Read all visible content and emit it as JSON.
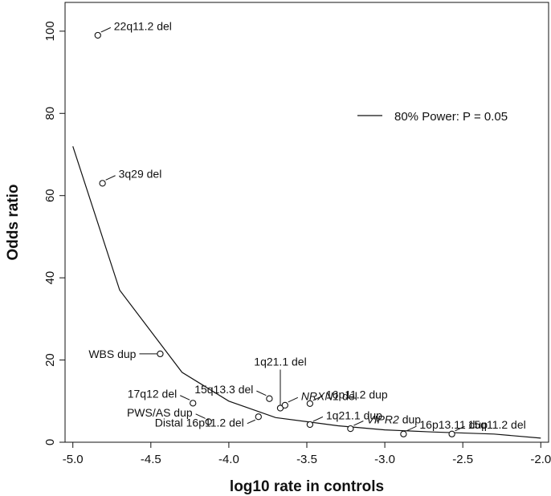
{
  "chart_data": {
    "type": "scatter",
    "xlabel": "log10 rate in controls",
    "ylabel": "Odds ratio",
    "xlim": [
      -5.05,
      -1.95
    ],
    "ylim": [
      0,
      107
    ],
    "xticks": [
      "-5.0",
      "-4.5",
      "-4.0",
      "-3.5",
      "-3.0",
      "-2.5",
      "-2.0"
    ],
    "xtick_values": [
      -5.0,
      -4.5,
      -4.0,
      -3.5,
      -3.0,
      -2.5,
      -2.0
    ],
    "yticks": [
      "0",
      "20",
      "40",
      "60",
      "80",
      "100"
    ],
    "ytick_values": [
      0,
      20,
      40,
      60,
      80,
      100
    ],
    "grid": false,
    "legend": {
      "position": "top-right",
      "entries": [
        {
          "label": "80% Power: P = 0.05",
          "style": "line"
        }
      ]
    },
    "power_curve": {
      "name": "80% Power: P = 0.05",
      "x": [
        -5.0,
        -4.7,
        -4.3,
        -4.0,
        -3.7,
        -3.3,
        -3.0,
        -2.7,
        -2.3,
        -2.0
      ],
      "y": [
        72,
        37,
        17,
        10,
        6,
        4,
        3,
        2.5,
        2,
        1
      ]
    },
    "points": [
      {
        "label": "22q11.2 del",
        "italic": "",
        "suffix": "",
        "x": -4.84,
        "y": 99,
        "dir": "up-right"
      },
      {
        "label": "3q29 del",
        "italic": "",
        "suffix": "",
        "x": -4.81,
        "y": 63,
        "dir": "up-right"
      },
      {
        "label": "WBS dup",
        "italic": "",
        "suffix": "",
        "x": -4.44,
        "y": 21.5,
        "dir": "left"
      },
      {
        "label": "17q12 del",
        "italic": "",
        "suffix": "",
        "x": -4.23,
        "y": 9.5,
        "dir": "up-left"
      },
      {
        "label": "PWS/AS dup",
        "italic": "",
        "suffix": "",
        "x": -4.13,
        "y": 5.0,
        "dir": "up-left"
      },
      {
        "label": "Distal 16p11.2 del",
        "italic": "",
        "suffix": "",
        "x": -3.81,
        "y": 6.2,
        "dir": "down-left"
      },
      {
        "label": "15q13.3 del",
        "italic": "",
        "suffix": "",
        "x": -3.74,
        "y": 10.6,
        "dir": "up-left"
      },
      {
        "label": "1q21.1 del",
        "italic": "",
        "suffix": "",
        "x": -3.67,
        "y": 8.3,
        "dir": "up"
      },
      {
        "label": "",
        "italic": "NRXN1",
        "suffix": " del",
        "x": -3.64,
        "y": 9.0,
        "dir": "up-right"
      },
      {
        "label": "16p11.2 dup",
        "italic": "",
        "suffix": "",
        "x": -3.48,
        "y": 9.4,
        "dir": "up-right"
      },
      {
        "label": "1q21.1 dup",
        "italic": "",
        "suffix": "",
        "x": -3.48,
        "y": 4.3,
        "dir": "up-right"
      },
      {
        "label": "",
        "italic": "VIPR2",
        "suffix": " dup",
        "x": -3.22,
        "y": 3.3,
        "dir": "up-right"
      },
      {
        "label": "16p13.11 dup",
        "italic": "",
        "suffix": "",
        "x": -2.88,
        "y": 2.0,
        "dir": "up-right"
      },
      {
        "label": "15q11.2 del",
        "italic": "",
        "suffix": "",
        "x": -2.57,
        "y": 2.0,
        "dir": "up-right"
      }
    ]
  }
}
